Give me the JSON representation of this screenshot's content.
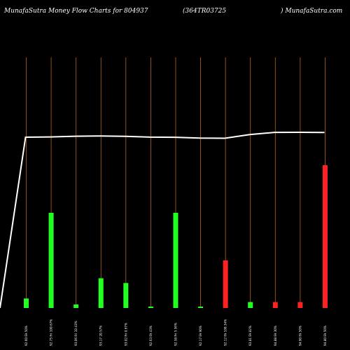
{
  "header": {
    "left": "MunafaSutra  Money Flow  Charts for 804937",
    "middle": "(364TR03725",
    "right": ") MunafaSutra.com"
  },
  "colors": {
    "background": "#000000",
    "gridline": "#b5651d",
    "up": "#22ff22",
    "down": "#ff2222",
    "line": "#ffffff",
    "label": "#ffffff"
  },
  "chart_data": {
    "type": "bar",
    "title": "MunafaSutra  Money Flow  Charts for 804937",
    "categories": [
      "92.60 FA 50%",
      "92.75 Fri 100.67%",
      "93.06 Fri 10.43%",
      "93.17 20.57%",
      "93.02 Fri 0.67%",
      "92.63 FA 43%",
      "92.58 Fri 5.56%",
      "92.17 FA 90%",
      "92.12 FA 100.34%",
      "93.81 FA 82%",
      "94.88 FA 30%",
      "94.90 FA 50%",
      "94.80 FA 50%"
    ],
    "bars": [
      {
        "value": 4,
        "color": "green"
      },
      {
        "value": 40,
        "color": "green"
      },
      {
        "value": 1.5,
        "color": "green"
      },
      {
        "value": 12.5,
        "color": "green"
      },
      {
        "value": 10.5,
        "color": "green"
      },
      {
        "value": 0.5,
        "color": "green"
      },
      {
        "value": 40,
        "color": "green"
      },
      {
        "value": 0.5,
        "color": "green"
      },
      {
        "value": 20,
        "color": "red"
      },
      {
        "value": 2.5,
        "color": "green"
      },
      {
        "value": 2.5,
        "color": "red"
      },
      {
        "value": 2.5,
        "color": "red"
      },
      {
        "value": 60,
        "color": "red"
      }
    ],
    "price_line": {
      "start_value": 0,
      "values": [
        92.6,
        92.75,
        93.06,
        93.17,
        93.02,
        92.63,
        92.58,
        92.17,
        92.12,
        93.81,
        94.88,
        94.9,
        94.8
      ]
    }
  }
}
